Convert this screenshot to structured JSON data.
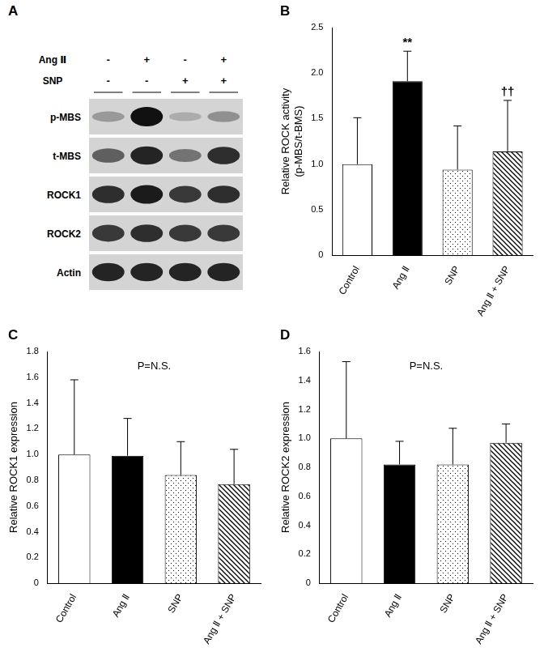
{
  "blot": {
    "panel_label": "A",
    "treatments": [
      {
        "name": "Ang Ⅱ",
        "signs": [
          "-",
          "+",
          "-",
          "+"
        ]
      },
      {
        "name": "SNP",
        "signs": [
          "-",
          "-",
          "+",
          "+"
        ]
      }
    ],
    "rows": [
      {
        "label": "p-MBS",
        "intensity": [
          0.3,
          1.0,
          0.2,
          0.35
        ]
      },
      {
        "label": "t-MBS",
        "intensity": [
          0.6,
          0.9,
          0.5,
          0.85
        ]
      },
      {
        "label": "ROCK1",
        "intensity": [
          0.85,
          0.95,
          0.8,
          0.85
        ]
      },
      {
        "label": "ROCK2",
        "intensity": [
          0.8,
          0.85,
          0.8,
          0.8
        ]
      },
      {
        "label": "Actin",
        "intensity": [
          0.9,
          0.9,
          0.9,
          0.9
        ]
      }
    ]
  },
  "chart_data": [
    {
      "type": "bar",
      "panel_label": "B",
      "y_label": [
        "Relative ROCK activity",
        "(p-MBS/t-BMS)"
      ],
      "categories": [
        "Control",
        "Ang Ⅱ",
        "SNP",
        "Ang Ⅱ + SNP"
      ],
      "values": [
        1.0,
        1.91,
        0.94,
        1.14
      ],
      "errors": [
        0.51,
        0.33,
        0.48,
        0.56
      ],
      "colors": [
        "#ffffff",
        "#000000",
        "#ffffff",
        "#ffffff"
      ],
      "ylim": [
        0,
        2.5
      ],
      "yticks": [
        0,
        0.5,
        {
          "value": 1,
          "label": "1.0"
        },
        1.5,
        {
          "value": 2,
          "label": "2.0"
        },
        2.5
      ],
      "grid": false,
      "annotations": [
        {
          "text": "**",
          "category": "Ang Ⅱ"
        },
        {
          "text": "††",
          "category": "Ang Ⅱ + SNP"
        }
      ]
    },
    {
      "type": "bar",
      "panel_label": "C",
      "y_label": "Relative ROCK1 expression",
      "categories": [
        "Control",
        "Ang Ⅱ",
        "SNP",
        "Ang Ⅱ + SNP"
      ],
      "values": [
        1.0,
        0.99,
        0.84,
        0.77
      ],
      "errors": [
        0.58,
        0.29,
        0.26,
        0.27
      ],
      "colors": [
        "#ffffff",
        "#000000",
        "#ffffff",
        "#ffffff"
      ],
      "ylim": [
        0,
        1.8
      ],
      "yticks": [
        0,
        0.2,
        0.4,
        0.6,
        0.8,
        {
          "value": 1,
          "label": "1.0"
        },
        1.2,
        1.4,
        1.6,
        1.8
      ],
      "grid": false,
      "annotations": [
        {
          "text": "P=N.S."
        }
      ]
    },
    {
      "type": "bar",
      "panel_label": "D",
      "y_label": "Relative ROCK2 expression",
      "categories": [
        "Control",
        "Ang Ⅱ",
        "SNP",
        "Ang Ⅱ + SNP"
      ],
      "values": [
        1.0,
        0.82,
        0.82,
        0.97
      ],
      "errors": [
        0.53,
        0.16,
        0.25,
        0.13
      ],
      "colors": [
        "#ffffff",
        "#000000",
        "#ffffff",
        "#ffffff"
      ],
      "ylim": [
        0,
        1.6
      ],
      "yticks": [
        0,
        0.2,
        0.4,
        0.6,
        0.8,
        {
          "value": 1,
          "label": "1.0"
        },
        1.2,
        1.4,
        1.6
      ],
      "grid": false,
      "annotations": [
        {
          "text": "P=N.S."
        }
      ]
    }
  ]
}
